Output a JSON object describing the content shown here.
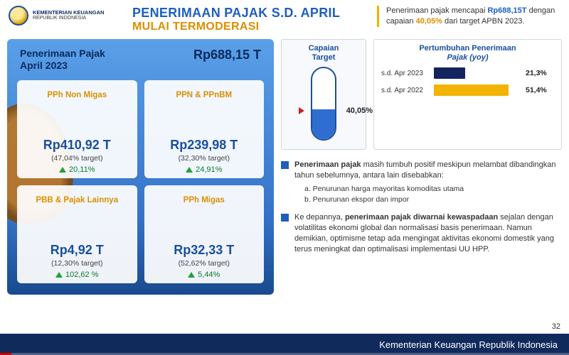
{
  "ministry": {
    "line1": "KEMENTERIAN KEUANGAN",
    "line2": "REPUBLIK INDONESIA"
  },
  "title": {
    "line1": "PENERIMAAN PAJAK S.D. APRIL",
    "line2": "MULAI TERMODERASI"
  },
  "header_note": {
    "pre": "Penerimaan pajak mencapai ",
    "amount": "Rp688,15T",
    "mid": " dengan capaian ",
    "pct": "40,05%",
    "post": " dari target APBN 2023."
  },
  "left": {
    "label_l1": "Penerimaan Pajak",
    "label_l2": "April 2023",
    "total": "Rp688,15 T",
    "cards": [
      {
        "title": "PPh Non Migas",
        "value": "Rp410,92 T",
        "sub": "(47,04% target)",
        "delta": "20,11%"
      },
      {
        "title": "PPN & PPnBM",
        "value": "Rp239,98 T",
        "sub": "(32,30% target)",
        "delta": "24,91%"
      },
      {
        "title": "PBB & Pajak Lainnya",
        "value": "Rp4,92 T",
        "sub": "(12,30% target)",
        "delta": "102,62 %"
      },
      {
        "title": "PPh Migas",
        "value": "Rp32,33 T",
        "sub": "(52,62% target)",
        "delta": "5,44%"
      }
    ]
  },
  "gauge": {
    "title_l1": "Capaian",
    "title_l2": "Target",
    "pct": 40.05,
    "pct_label": "40,05%",
    "fill_color": "#2f6dd0",
    "border_color": "#1a4fa0",
    "marker_color": "#d02020"
  },
  "growth": {
    "title_pre": "Pertumbuhan Penerimaan",
    "title_em": "Pajak (yoy)",
    "max": 60,
    "bars": [
      {
        "label": "s.d. Apr 2023",
        "value": 21.3,
        "value_label": "21,3%",
        "color": "#14245e"
      },
      {
        "label": "s.d. Apr 2022",
        "value": 51.4,
        "value_label": "51,4%",
        "color": "#f2b400"
      }
    ]
  },
  "notes": [
    {
      "lead": "Penerimaan pajak",
      "rest": " masih tumbuh positif meskipun melambat dibandingkan tahun sebelumnya, antara lain disebabkan:",
      "sub": [
        "a.  Penurunan harga mayoritas komoditas utama",
        "b.  Penurunan ekspor dan impor"
      ]
    },
    {
      "pre": "Ke depannya, ",
      "lead": "penerimaan pajak diwarnai kewaspadaan",
      "rest": " sejalan dengan volatilitas ekonomi global dan normalisasi basis penerimaan. Namun demikian, optimisme tetap ada mengingat aktivitas ekonomi domestik yang terus meningkat dan optimalisasi implementasi UU HPP."
    }
  ],
  "page_num": "32",
  "footer": "Kementerian Keuangan Republik Indonesia"
}
